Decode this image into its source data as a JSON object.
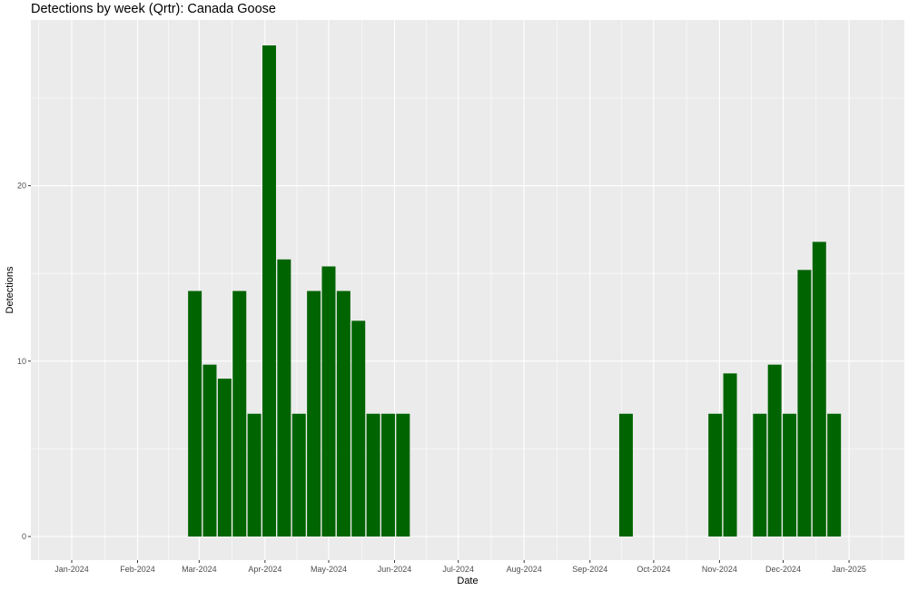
{
  "chart_data": {
    "type": "bar",
    "title": "Detections by week (Qrtr): Canada Goose",
    "xlabel": "Date",
    "ylabel": "Detections",
    "x_tick_labels": [
      "Jan-2024",
      "Feb-2024",
      "Mar-2024",
      "Apr-2024",
      "May-2024",
      "Jun-2024",
      "Jul-2024",
      "Aug-2024",
      "Sep-2024",
      "Oct-2024",
      "Nov-2024",
      "Dec-2024",
      "Jan-2025"
    ],
    "y_ticks": [
      0,
      10,
      20
    ],
    "ylim": [
      -1.3,
      30.0
    ],
    "grid": true,
    "bars": [
      {
        "week_start": "2024-02-25",
        "value": 14
      },
      {
        "week_start": "2024-03-03",
        "value": 9.8
      },
      {
        "week_start": "2024-03-10",
        "value": 9
      },
      {
        "week_start": "2024-03-17",
        "value": 14
      },
      {
        "week_start": "2024-03-24",
        "value": 7
      },
      {
        "week_start": "2024-03-31",
        "value": 28
      },
      {
        "week_start": "2024-04-07",
        "value": 15.8
      },
      {
        "week_start": "2024-04-14",
        "value": 7
      },
      {
        "week_start": "2024-04-21",
        "value": 14
      },
      {
        "week_start": "2024-04-28",
        "value": 15.4
      },
      {
        "week_start": "2024-05-05",
        "value": 14
      },
      {
        "week_start": "2024-05-12",
        "value": 12.3
      },
      {
        "week_start": "2024-05-19",
        "value": 7
      },
      {
        "week_start": "2024-05-26",
        "value": 7
      },
      {
        "week_start": "2024-06-02",
        "value": 7
      },
      {
        "week_start": "2024-09-15",
        "value": 7
      },
      {
        "week_start": "2024-10-27",
        "value": 7
      },
      {
        "week_start": "2024-11-03",
        "value": 9.3
      },
      {
        "week_start": "2024-11-17",
        "value": 7
      },
      {
        "week_start": "2024-11-24",
        "value": 9.8
      },
      {
        "week_start": "2024-12-01",
        "value": 7
      },
      {
        "week_start": "2024-12-08",
        "value": 15.2
      },
      {
        "week_start": "2024-12-15",
        "value": 16.8
      },
      {
        "week_start": "2024-12-22",
        "value": 7
      }
    ],
    "bar_color": "#006400",
    "panel_color": "#ebebeb",
    "grid_color": "#ffffff"
  }
}
